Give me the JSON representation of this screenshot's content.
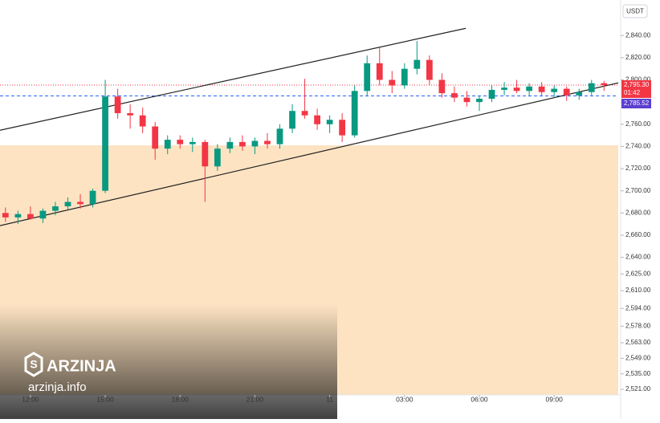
{
  "chart_data": {
    "type": "candlestick",
    "currency": "USDT",
    "x": [
      -1,
      -0.5,
      0,
      0.5,
      1,
      1.5,
      2,
      2.5,
      3,
      3.5,
      4,
      4.5,
      5,
      5.5,
      6,
      6.5,
      7,
      7.5,
      8,
      8.5,
      9,
      9.5,
      10,
      10.5,
      11,
      11.5,
      12,
      12.5,
      13,
      13.5,
      14,
      14.5,
      15,
      15.5,
      16,
      16.5,
      17,
      17.5,
      18,
      18.5,
      19,
      19.5,
      20,
      20.5,
      21,
      21.5,
      22,
      22.5,
      23
    ],
    "open": [
      2680,
      2676,
      2679,
      2675,
      2682,
      2686,
      2690,
      2688,
      2700,
      2785,
      2770,
      2768,
      2758,
      2738,
      2746,
      2742,
      2744,
      2722,
      2738,
      2744,
      2740,
      2745,
      2742,
      2756,
      2772,
      2768,
      2760,
      2764,
      2750,
      2790,
      2815,
      2800,
      2795,
      2810,
      2818,
      2800,
      2788,
      2784,
      2780,
      2783,
      2791,
      2793,
      2790,
      2794,
      2789,
      2792,
      2786,
      2789,
      2797
    ],
    "high": [
      2685,
      2682,
      2686,
      2684,
      2690,
      2694,
      2697,
      2702,
      2800,
      2792,
      2778,
      2775,
      2762,
      2750,
      2750,
      2748,
      2746,
      2742,
      2748,
      2750,
      2748,
      2752,
      2760,
      2778,
      2801,
      2774,
      2768,
      2770,
      2795,
      2822,
      2829,
      2808,
      2815,
      2835,
      2822,
      2806,
      2794,
      2790,
      2786,
      2795,
      2798,
      2800,
      2797,
      2798,
      2795,
      2794,
      2792,
      2800,
      2799
    ],
    "low": [
      2672,
      2670,
      2674,
      2671,
      2678,
      2683,
      2684,
      2685,
      2698,
      2765,
      2756,
      2752,
      2728,
      2733,
      2738,
      2735,
      2690,
      2718,
      2734,
      2736,
      2733,
      2738,
      2738,
      2752,
      2765,
      2755,
      2752,
      2744,
      2748,
      2785,
      2795,
      2788,
      2792,
      2805,
      2795,
      2784,
      2780,
      2776,
      2772,
      2780,
      2786,
      2788,
      2785,
      2786,
      2784,
      2781,
      2782,
      2786,
      2790
    ],
    "close": [
      2676,
      2679,
      2675,
      2682,
      2686,
      2690,
      2688,
      2700,
      2785,
      2770,
      2768,
      2758,
      2738,
      2746,
      2742,
      2744,
      2722,
      2738,
      2744,
      2740,
      2745,
      2742,
      2756,
      2772,
      2768,
      2760,
      2764,
      2750,
      2790,
      2815,
      2800,
      2795,
      2810,
      2818,
      2800,
      2788,
      2784,
      2780,
      2783,
      2791,
      2793,
      2790,
      2794,
      2789,
      2792,
      2786,
      2789,
      2797,
      2795.3
    ],
    "up_color": "#089981",
    "down_color": "#f23645",
    "xlim": [
      -1.22,
      23.57
    ],
    "xticks": [
      {
        "value": 0,
        "label": "12:00"
      },
      {
        "value": 3,
        "label": "15:00"
      },
      {
        "value": 6,
        "label": "18:00"
      },
      {
        "value": 9,
        "label": "21:00"
      },
      {
        "value": 12,
        "label": "11"
      },
      {
        "value": 15,
        "label": "03:00"
      },
      {
        "value": 18,
        "label": "06:00"
      },
      {
        "value": 21,
        "label": "09:00"
      }
    ],
    "ylim": [
      2516,
      2872
    ],
    "yticks": [
      {
        "value": 2840,
        "label": "2,840.00"
      },
      {
        "value": 2820,
        "label": "2,820.00"
      },
      {
        "value": 2800,
        "label": "2,800.00"
      },
      {
        "value": 2780,
        "label": "2,780.00"
      },
      {
        "value": 2760,
        "label": "2,760.00"
      },
      {
        "value": 2740,
        "label": "2,740.00"
      },
      {
        "value": 2720,
        "label": "2,720.00"
      },
      {
        "value": 2700,
        "label": "2,700.00"
      },
      {
        "value": 2680,
        "label": "2,680.00"
      },
      {
        "value": 2660,
        "label": "2,660.00"
      },
      {
        "value": 2640,
        "label": "2,640.00"
      },
      {
        "value": 2625,
        "label": "2,625.00"
      },
      {
        "value": 2610,
        "label": "2,610.00"
      },
      {
        "value": 2594,
        "label": "2,594.00"
      },
      {
        "value": 2578,
        "label": "2,578.00"
      },
      {
        "value": 2563,
        "label": "2,563.00"
      },
      {
        "value": 2549,
        "label": "2,549.00"
      },
      {
        "value": 2535,
        "label": "2,535.00"
      },
      {
        "value": 2521,
        "label": "2,521.00"
      }
    ],
    "grid": false,
    "zone": {
      "top": 2741,
      "color": "#fde3c2"
    },
    "trendlines": [
      {
        "x": [
          -1.22,
          17.46
        ],
        "y": [
          2754.6,
          2846.5
        ],
        "color": "#222222"
      },
      {
        "x": [
          -1.22,
          23.57
        ],
        "y": [
          2668.6,
          2797.3
        ],
        "color": "#222222"
      }
    ],
    "last_price": {
      "value": 2795.3,
      "label": "2,795.30",
      "countdown": "01:42",
      "color": "#f23645"
    },
    "avg_price": {
      "value": 2785.52,
      "label": "2,785.52",
      "color": "#5b3fd0",
      "line_color": "#2962ff"
    }
  },
  "watermark": {
    "brand": "ARZINJA",
    "site": "arzinja.info"
  }
}
